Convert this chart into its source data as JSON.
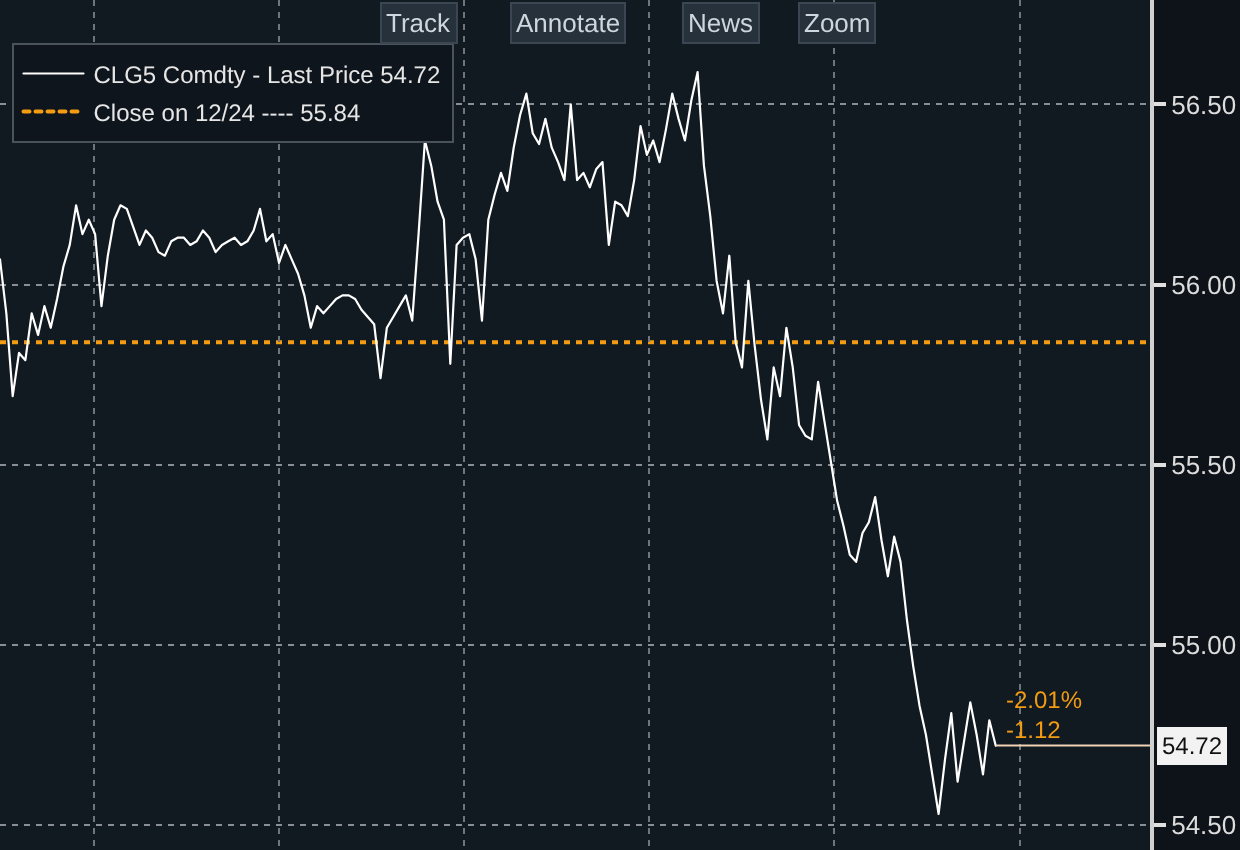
{
  "chart_data": {
    "type": "line",
    "categories": [
      null,
      null,
      null,
      null,
      null,
      null,
      null,
      null,
      null,
      null,
      null,
      null,
      null,
      null,
      null,
      null,
      null,
      null,
      null,
      null,
      null,
      null,
      null,
      null,
      null,
      null,
      null,
      null,
      null,
      null,
      null,
      null,
      null,
      null,
      null,
      null,
      null,
      null,
      null,
      null,
      null,
      null,
      null,
      null,
      null,
      null,
      null,
      null,
      null,
      null,
      null,
      null,
      null,
      null,
      null,
      null,
      null,
      null,
      null,
      null,
      null,
      null,
      null,
      null,
      null,
      null,
      null,
      null,
      null,
      null,
      null,
      null,
      null,
      null,
      null,
      null,
      null,
      null,
      null,
      null,
      null,
      null,
      null,
      null,
      null,
      null,
      null,
      null,
      null,
      null,
      null,
      null,
      null,
      null,
      null,
      null,
      null,
      null,
      null,
      null,
      null,
      null,
      null,
      null,
      null,
      null,
      null,
      null,
      null,
      null,
      null,
      null,
      null,
      null,
      null,
      null,
      null,
      null,
      null,
      null,
      null,
      null,
      null,
      null,
      null,
      null,
      null,
      null,
      null,
      null,
      null,
      null,
      null,
      null,
      null,
      null,
      null,
      null,
      null,
      null,
      null,
      null,
      null,
      null,
      null,
      null,
      null,
      null,
      null,
      null,
      null,
      null,
      null,
      null,
      null,
      null,
      null,
      null
    ],
    "series": [
      {
        "name": "CLG5 Comdty - Last Price 54.72",
        "color": "#ffffff",
        "values": [
          56.07,
          55.92,
          55.69,
          55.81,
          55.79,
          55.92,
          55.86,
          55.94,
          55.88,
          55.96,
          56.05,
          56.11,
          56.22,
          56.14,
          56.18,
          56.14,
          55.94,
          56.08,
          56.18,
          56.22,
          56.21,
          56.16,
          56.11,
          56.15,
          56.13,
          56.09,
          56.08,
          56.12,
          56.13,
          56.13,
          56.11,
          56.12,
          56.15,
          56.13,
          56.09,
          56.11,
          56.12,
          56.13,
          56.11,
          56.12,
          56.15,
          56.21,
          56.12,
          56.14,
          56.06,
          56.11,
          56.07,
          56.03,
          55.97,
          55.88,
          55.94,
          55.92,
          55.94,
          55.96,
          55.97,
          55.97,
          55.96,
          55.93,
          55.91,
          55.89,
          55.74,
          55.88,
          55.91,
          55.94,
          55.97,
          55.9,
          56.14,
          56.4,
          56.33,
          56.23,
          56.18,
          55.78,
          56.11,
          56.13,
          56.14,
          56.07,
          55.9,
          56.18,
          56.25,
          56.31,
          56.26,
          56.38,
          56.47,
          56.53,
          56.42,
          56.39,
          56.46,
          56.38,
          56.34,
          56.29,
          56.5,
          56.29,
          56.31,
          56.27,
          56.32,
          56.34,
          56.11,
          56.23,
          56.22,
          56.19,
          56.29,
          56.44,
          56.36,
          56.4,
          56.34,
          56.43,
          56.53,
          56.46,
          56.4,
          56.51,
          56.59,
          56.33,
          56.19,
          56.01,
          55.92,
          56.08,
          55.84,
          55.77,
          56.01,
          55.83,
          55.68,
          55.57,
          55.77,
          55.69,
          55.88,
          55.77,
          55.61,
          55.58,
          55.57,
          55.73,
          55.62,
          55.51,
          55.4,
          55.33,
          55.25,
          55.23,
          55.31,
          55.34,
          55.41,
          55.29,
          55.19,
          55.3,
          55.23,
          55.07,
          54.94,
          54.83,
          54.75,
          54.64,
          54.53,
          54.68,
          54.81,
          54.62,
          54.73,
          54.84,
          54.75,
          54.64,
          54.79,
          54.72
        ],
        "value_labels": [
          null,
          null,
          null,
          null,
          null,
          null,
          null,
          null,
          null,
          null,
          null,
          null,
          null,
          null,
          null,
          null,
          null,
          null,
          null,
          null,
          null,
          null,
          null,
          null,
          null,
          null,
          null,
          null,
          null,
          null,
          null,
          null,
          null,
          null,
          null,
          null,
          null,
          null,
          null,
          null,
          null,
          null,
          null,
          null,
          null,
          null,
          null,
          null,
          null,
          null,
          null,
          null,
          null,
          null,
          null,
          null,
          null,
          null,
          null,
          null,
          null,
          null,
          null,
          null,
          null,
          null,
          null,
          null,
          null,
          null,
          null,
          null,
          null,
          null,
          null,
          null,
          null,
          null,
          null,
          null,
          null,
          null,
          null,
          null,
          null,
          null,
          null,
          null,
          null,
          null,
          null,
          null,
          null,
          null,
          null,
          null,
          null,
          null,
          null,
          null,
          null,
          null,
          null,
          null,
          null,
          null,
          null,
          null,
          null,
          null,
          null,
          null,
          null,
          null,
          null,
          null,
          null,
          null,
          null,
          null,
          null,
          null,
          null,
          null,
          null,
          null,
          null,
          null,
          null,
          null,
          null,
          null,
          null,
          null,
          null,
          null,
          null,
          null,
          null,
          null,
          null,
          null,
          null,
          null,
          null,
          null,
          null,
          null,
          null,
          null,
          null,
          null,
          null,
          null,
          null,
          null,
          null,
          "54.72"
        ]
      }
    ],
    "ylim": [
      54.43,
      56.79
    ],
    "yticks": [
      {
        "value": 54.5,
        "label": "54.50"
      },
      {
        "value": 55,
        "label": "55.00"
      },
      {
        "value": 55.5,
        "label": "55.50"
      },
      {
        "value": 56,
        "label": "56.00"
      },
      {
        "value": 56.5,
        "label": "56.50"
      }
    ],
    "ref_lines": [
      {
        "axis": "y",
        "value": 55.84,
        "label": "Close on 12/24 ---- 55.84",
        "color": "#f39c12",
        "line_style": "dotted"
      }
    ],
    "annotations": [
      "Track",
      "Annotate",
      "News",
      "Zoom",
      "-2.01%",
      "-1.12"
    ],
    "grid": true,
    "legend": "top left",
    "tick_labels": "y"
  }
}
